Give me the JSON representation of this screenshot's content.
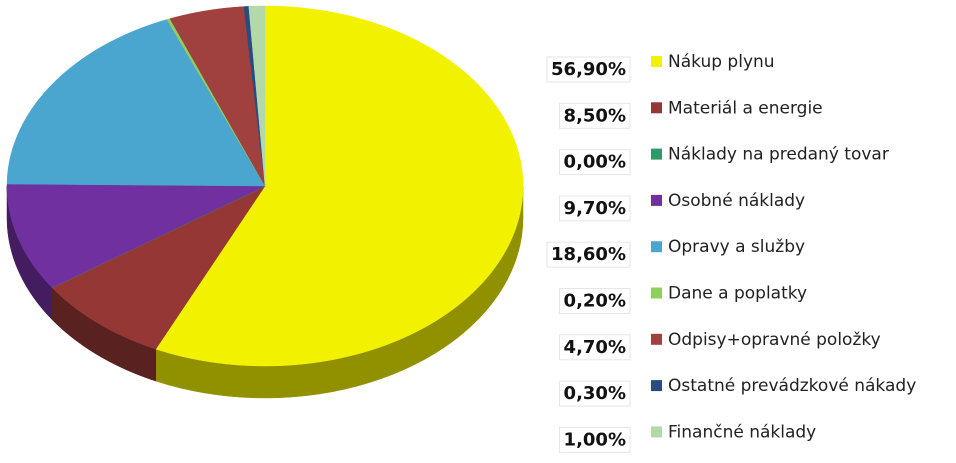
{
  "chart_data": {
    "type": "pie",
    "categories": [
      "Nákup plynu",
      "Materiál a energie",
      "Náklady na predaný tovar",
      "Osobné náklady",
      "Opravy a služby",
      "Dane a poplatky",
      "Odpisy+opravné položky",
      "Ostatné prevádzkové nákady",
      "Finančné náklady"
    ],
    "values": [
      56.9,
      8.5,
      0,
      9.7,
      18.6,
      0.2,
      4.7,
      0.3,
      1.0
    ],
    "value_labels": [
      "56,90%",
      "8,50%",
      "0,00%",
      "9,70%",
      "18,60%",
      "0,20%",
      "4,70%",
      "0,30%",
      "1,00%"
    ],
    "colors": [
      "#f2f200",
      "#953735",
      "#2e9a6a",
      "#7030a0",
      "#4aa6cf",
      "#8fcf5a",
      "#a0403f",
      "#2b4a80",
      "#b3d9aa"
    ]
  }
}
